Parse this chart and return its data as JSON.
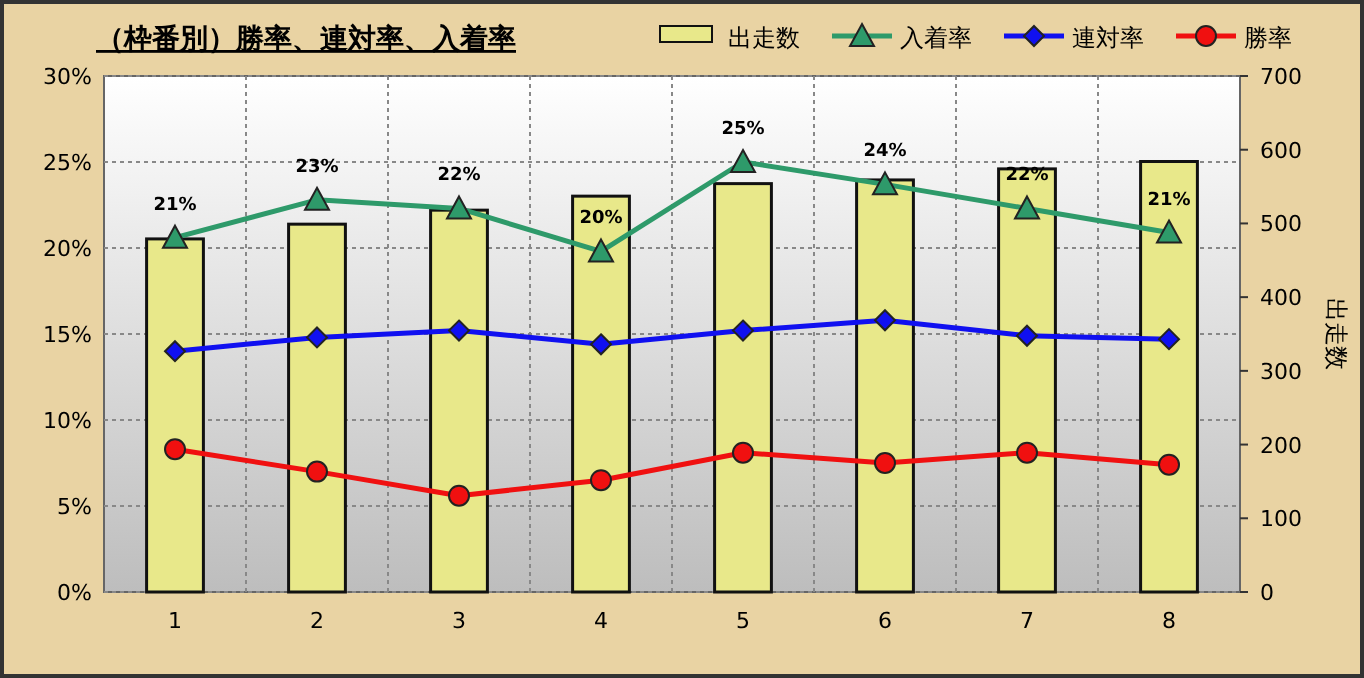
{
  "chart_data": {
    "type": "line",
    "title": "（枠番別）勝率、連対率、入着率",
    "y2label": "出走数",
    "categories": [
      "1",
      "2",
      "3",
      "4",
      "5",
      "6",
      "7",
      "8"
    ],
    "series": [
      {
        "name": "出走数",
        "type": "bar",
        "axis": "y2",
        "color": "#e8e88a",
        "values": [
          479,
          499,
          518,
          537,
          554,
          559,
          574,
          584
        ]
      },
      {
        "name": "入着率",
        "marker": "triangle",
        "color": "#2e9a6a",
        "values": [
          20.6,
          22.8,
          22.3,
          19.8,
          25.0,
          23.7,
          22.3,
          20.9
        ],
        "value_labels": [
          "21%",
          "23%",
          "22%",
          "20%",
          "25%",
          "24%",
          "22%",
          "21%"
        ]
      },
      {
        "name": "連対率",
        "marker": "diamond",
        "color": "#1010f0",
        "values": [
          14.0,
          14.8,
          15.2,
          14.4,
          15.2,
          15.8,
          14.9,
          14.7
        ]
      },
      {
        "name": "勝率",
        "marker": "circle",
        "color": "#f01010",
        "values": [
          8.3,
          7.0,
          5.6,
          6.5,
          8.1,
          7.5,
          8.1,
          7.4
        ]
      }
    ],
    "ylim": [
      0,
      30
    ],
    "yticks": [
      {
        "value": 0,
        "label": "0%"
      },
      {
        "value": 5,
        "label": "5%"
      },
      {
        "value": 10,
        "label": "10%"
      },
      {
        "value": 15,
        "label": "15%"
      },
      {
        "value": 20,
        "label": "20%"
      },
      {
        "value": 25,
        "label": "25%"
      },
      {
        "value": 30,
        "label": "30%"
      }
    ],
    "y2lim": [
      0,
      700
    ],
    "y2ticks": [
      0,
      100,
      200,
      300,
      400,
      500,
      600,
      700
    ],
    "grid": true,
    "legend": "top right"
  }
}
